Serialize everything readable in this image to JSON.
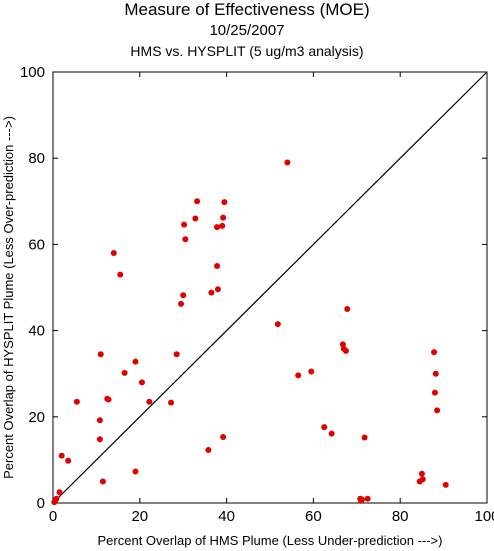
{
  "chart_data": {
    "type": "scatter",
    "title": "Measure of Effectiveness (MOE)",
    "subtitle": "10/25/2007",
    "subtitle2": "HMS vs. HYSPLIT  (5 ug/m3 analysis)",
    "xlabel": "Percent Overlap of HMS Plume (Less Under-prediction --->)",
    "ylabel": "Percent Overlap of HYSPLIT Plume (Less Over-prediction --->)",
    "xlim": [
      0,
      100
    ],
    "ylim": [
      0,
      100
    ],
    "xticks": [
      "0",
      "20",
      "40",
      "60",
      "80",
      "100"
    ],
    "yticks": [
      "0",
      "20",
      "40",
      "60",
      "80",
      "100"
    ],
    "grid": false,
    "reference_line": "y = x",
    "marker_color": "#e00000",
    "points": [
      {
        "x": 0.3,
        "y": 0.2
      },
      {
        "x": 0.5,
        "y": 0.5
      },
      {
        "x": 0.8,
        "y": 1.0
      },
      {
        "x": 1.5,
        "y": 2.5
      },
      {
        "x": 2.0,
        "y": 11.0
      },
      {
        "x": 3.5,
        "y": 9.8
      },
      {
        "x": 5.5,
        "y": 23.5
      },
      {
        "x": 11.0,
        "y": 34.5
      },
      {
        "x": 10.8,
        "y": 19.2
      },
      {
        "x": 10.8,
        "y": 14.8
      },
      {
        "x": 11.5,
        "y": 5.0
      },
      {
        "x": 12.5,
        "y": 24.2
      },
      {
        "x": 12.8,
        "y": 24.0
      },
      {
        "x": 14.0,
        "y": 58.0
      },
      {
        "x": 15.5,
        "y": 53.0
      },
      {
        "x": 16.5,
        "y": 30.2
      },
      {
        "x": 19.0,
        "y": 32.8
      },
      {
        "x": 19.0,
        "y": 7.3
      },
      {
        "x": 20.5,
        "y": 28.0
      },
      {
        "x": 22.2,
        "y": 23.5
      },
      {
        "x": 27.2,
        "y": 23.3
      },
      {
        "x": 28.5,
        "y": 34.5
      },
      {
        "x": 29.5,
        "y": 46.2
      },
      {
        "x": 30.0,
        "y": 48.2
      },
      {
        "x": 30.2,
        "y": 64.6
      },
      {
        "x": 30.5,
        "y": 61.2
      },
      {
        "x": 32.8,
        "y": 66.0
      },
      {
        "x": 33.2,
        "y": 70.0
      },
      {
        "x": 35.8,
        "y": 12.3
      },
      {
        "x": 36.5,
        "y": 48.8
      },
      {
        "x": 37.8,
        "y": 64.0
      },
      {
        "x": 37.8,
        "y": 55.0
      },
      {
        "x": 38.0,
        "y": 49.6
      },
      {
        "x": 39.0,
        "y": 64.3
      },
      {
        "x": 39.2,
        "y": 66.2
      },
      {
        "x": 39.2,
        "y": 15.3
      },
      {
        "x": 39.5,
        "y": 69.8
      },
      {
        "x": 51.8,
        "y": 41.5
      },
      {
        "x": 54.0,
        "y": 79.0
      },
      {
        "x": 56.5,
        "y": 29.6
      },
      {
        "x": 59.5,
        "y": 30.5
      },
      {
        "x": 62.5,
        "y": 17.6
      },
      {
        "x": 64.2,
        "y": 16.1
      },
      {
        "x": 66.8,
        "y": 36.8
      },
      {
        "x": 67.0,
        "y": 35.8
      },
      {
        "x": 67.5,
        "y": 35.3
      },
      {
        "x": 67.8,
        "y": 45.0
      },
      {
        "x": 70.8,
        "y": 1.0
      },
      {
        "x": 71.0,
        "y": 0.5
      },
      {
        "x": 71.2,
        "y": 0.8
      },
      {
        "x": 71.8,
        "y": 15.2
      },
      {
        "x": 72.5,
        "y": 1.0
      },
      {
        "x": 84.5,
        "y": 5.0
      },
      {
        "x": 85.0,
        "y": 6.8
      },
      {
        "x": 85.2,
        "y": 5.5
      },
      {
        "x": 87.8,
        "y": 35.0
      },
      {
        "x": 88.0,
        "y": 25.6
      },
      {
        "x": 88.2,
        "y": 30.0
      },
      {
        "x": 88.5,
        "y": 21.5
      },
      {
        "x": 90.5,
        "y": 4.2
      }
    ]
  }
}
